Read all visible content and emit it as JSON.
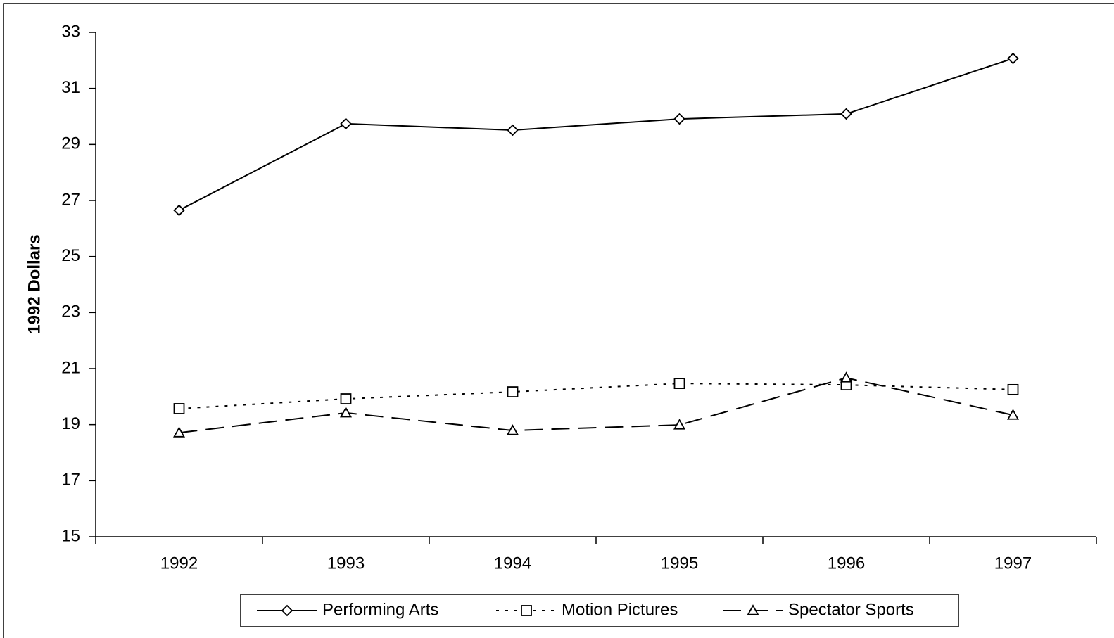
{
  "chart_data": {
    "type": "line",
    "y_label": "1992 Dollars",
    "categories": [
      "1992",
      "1993",
      "1994",
      "1995",
      "1996",
      "1997"
    ],
    "series": [
      {
        "name": "Performing Arts",
        "color": "#000000",
        "line_style": "solid",
        "marker": "diamond",
        "values": [
          26.65,
          29.74,
          29.51,
          29.91,
          30.09,
          32.07
        ]
      },
      {
        "name": "Motion Pictures",
        "color": "#000000",
        "line_style": "dotted",
        "marker": "square",
        "values": [
          19.57,
          19.92,
          20.17,
          20.47,
          20.42,
          20.25
        ]
      },
      {
        "name": "Spectator Sports",
        "color": "#000000",
        "line_style": "dashed",
        "marker": "triangle",
        "values": [
          18.71,
          19.42,
          18.79,
          18.99,
          20.67,
          19.34
        ]
      }
    ],
    "ylim": [
      15,
      33
    ],
    "yticks": [
      15,
      17,
      19,
      21,
      23,
      25,
      27,
      29,
      31,
      33
    ],
    "grid": false,
    "legend": "bottom"
  }
}
